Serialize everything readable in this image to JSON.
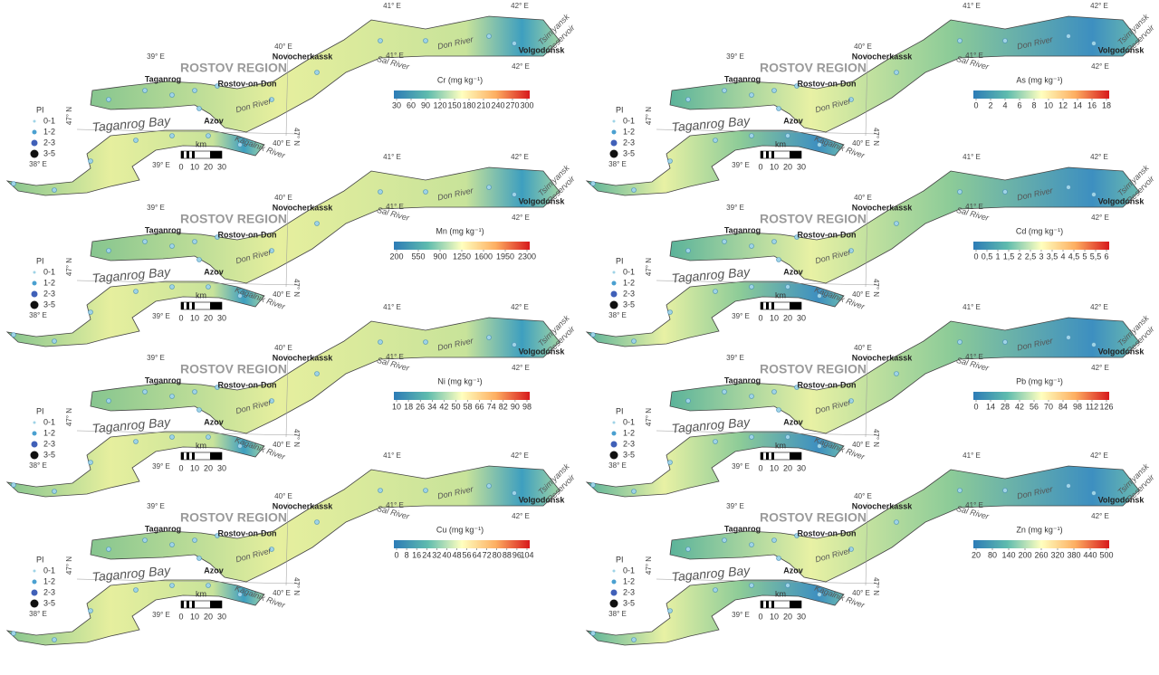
{
  "labels": {
    "region": "ROSTOV REGION",
    "taganrog": "Taganrog",
    "rostov": "Rostov-on-Don",
    "novocherkassk": "Novocherkassk",
    "azov": "Azov",
    "volgodonsk": "Volgodonsk",
    "don_river": "Don River",
    "sal_river": "Sal River",
    "kagalnik_river": "Kagalnik River",
    "taganrog_bay": "Taganrog Bay",
    "tsimlyansk": "Tsimlyansk",
    "reservoir": "Reservoir",
    "e38": "38° E",
    "e39": "39° E",
    "e40": "40° E",
    "e41": "41° E",
    "e42": "42° E",
    "n47": "47° N"
  },
  "legend": {
    "title": "PI",
    "classes": [
      "0-1",
      "1-2",
      "2-3",
      "3-5"
    ]
  },
  "scale_bar": {
    "label": "km",
    "ticks": [
      0,
      10,
      20,
      30
    ]
  },
  "panels": [
    {
      "colorbar_title": "Cr (mg kg⁻¹)",
      "ticks": [
        30,
        60,
        90,
        120,
        150,
        180,
        210,
        240,
        270,
        300
      ]
    },
    {
      "colorbar_title": "Mn (mg kg⁻¹)",
      "ticks": [
        200,
        550,
        900,
        1250,
        1600,
        1950,
        2300
      ]
    },
    {
      "colorbar_title": "Ni (mg kg⁻¹)",
      "ticks": [
        10,
        18,
        26,
        34,
        42,
        50,
        58,
        66,
        74,
        82,
        90,
        98
      ]
    },
    {
      "colorbar_title": "Cu (mg kg⁻¹)",
      "ticks": [
        0,
        8,
        16,
        24,
        32,
        40,
        48,
        56,
        64,
        72,
        80,
        88,
        96,
        104
      ]
    },
    {
      "colorbar_title": "As (mg kg⁻¹)",
      "ticks": [
        0,
        2,
        4,
        6,
        8,
        10,
        12,
        14,
        16,
        18
      ]
    },
    {
      "colorbar_title": "Cd (mg kg⁻¹)",
      "ticks": [
        0,
        {
          "value": 0.5,
          "label": "0,5"
        },
        1,
        {
          "value": 1.5,
          "label": "1,5"
        },
        2,
        {
          "value": 2.5,
          "label": "2,5"
        },
        3,
        {
          "value": 3.5,
          "label": "3,5"
        },
        4,
        {
          "value": 4.5,
          "label": "4,5"
        },
        5,
        {
          "value": 5.5,
          "label": "5,5"
        },
        6
      ]
    },
    {
      "colorbar_title": "Pb (mg kg⁻¹)",
      "ticks": [
        0,
        14,
        28,
        42,
        56,
        70,
        84,
        98,
        112,
        126
      ]
    },
    {
      "colorbar_title": "Zn (mg kg⁻¹)",
      "ticks": [
        20,
        80,
        140,
        200,
        260,
        320,
        380,
        440,
        500
      ]
    }
  ]
}
